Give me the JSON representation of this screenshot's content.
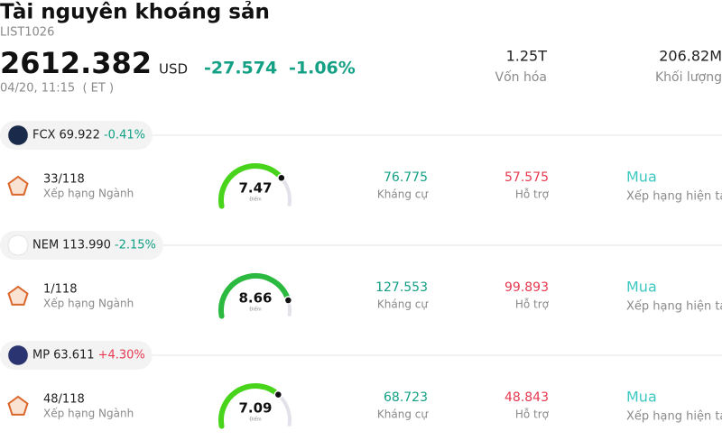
{
  "header": {
    "title": "Tài nguyên khoáng sản",
    "code": "LIST1026",
    "price": "2612.382",
    "currency": "USD",
    "change": "-27.574",
    "change_percent": "-1.06%",
    "datetime": "04/20, 11:15  ( ET )",
    "stats": [
      {
        "value": "1.25T",
        "label": "Vốn hóa"
      },
      {
        "value": "206.82M",
        "label": "Khối lượng"
      }
    ]
  },
  "gauge": {
    "min": 0,
    "max": 10
  },
  "stocks": [
    {
      "ticker": "FCX",
      "price": "69.922",
      "change": "-0.41%",
      "rank": "33/118",
      "rank_label": "Xếp hạng Ngành",
      "score": 7.47,
      "score_label": "Điểm",
      "resistance": "76.775",
      "resistance_label": "Kháng cự",
      "support": "57.575",
      "support_label": "Hỗ trợ",
      "rating": "Mua",
      "rating_label": "Xếp hạng hiện tại"
    },
    {
      "ticker": "NEM",
      "price": "113.990",
      "change": "-2.15%",
      "rank": "1/118",
      "rank_label": "Xếp hạng Ngành",
      "score": 8.66,
      "score_label": "Điểm",
      "resistance": "127.553",
      "resistance_label": "Kháng cự",
      "support": "99.893",
      "support_label": "Hỗ trợ",
      "rating": "Mua",
      "rating_label": "Xếp hạng hiện tại"
    },
    {
      "ticker": "MP",
      "price": "63.611",
      "change": "+4.30%",
      "rank": "48/118",
      "rank_label": "Xếp hạng Ngành",
      "score": 7.09,
      "score_label": "Điểm",
      "resistance": "68.723",
      "resistance_label": "Kháng cự",
      "support": "48.843",
      "support_label": "Hỗ trợ",
      "rating": "Mua",
      "rating_label": "Xếp hạng hiện tại"
    }
  ]
}
